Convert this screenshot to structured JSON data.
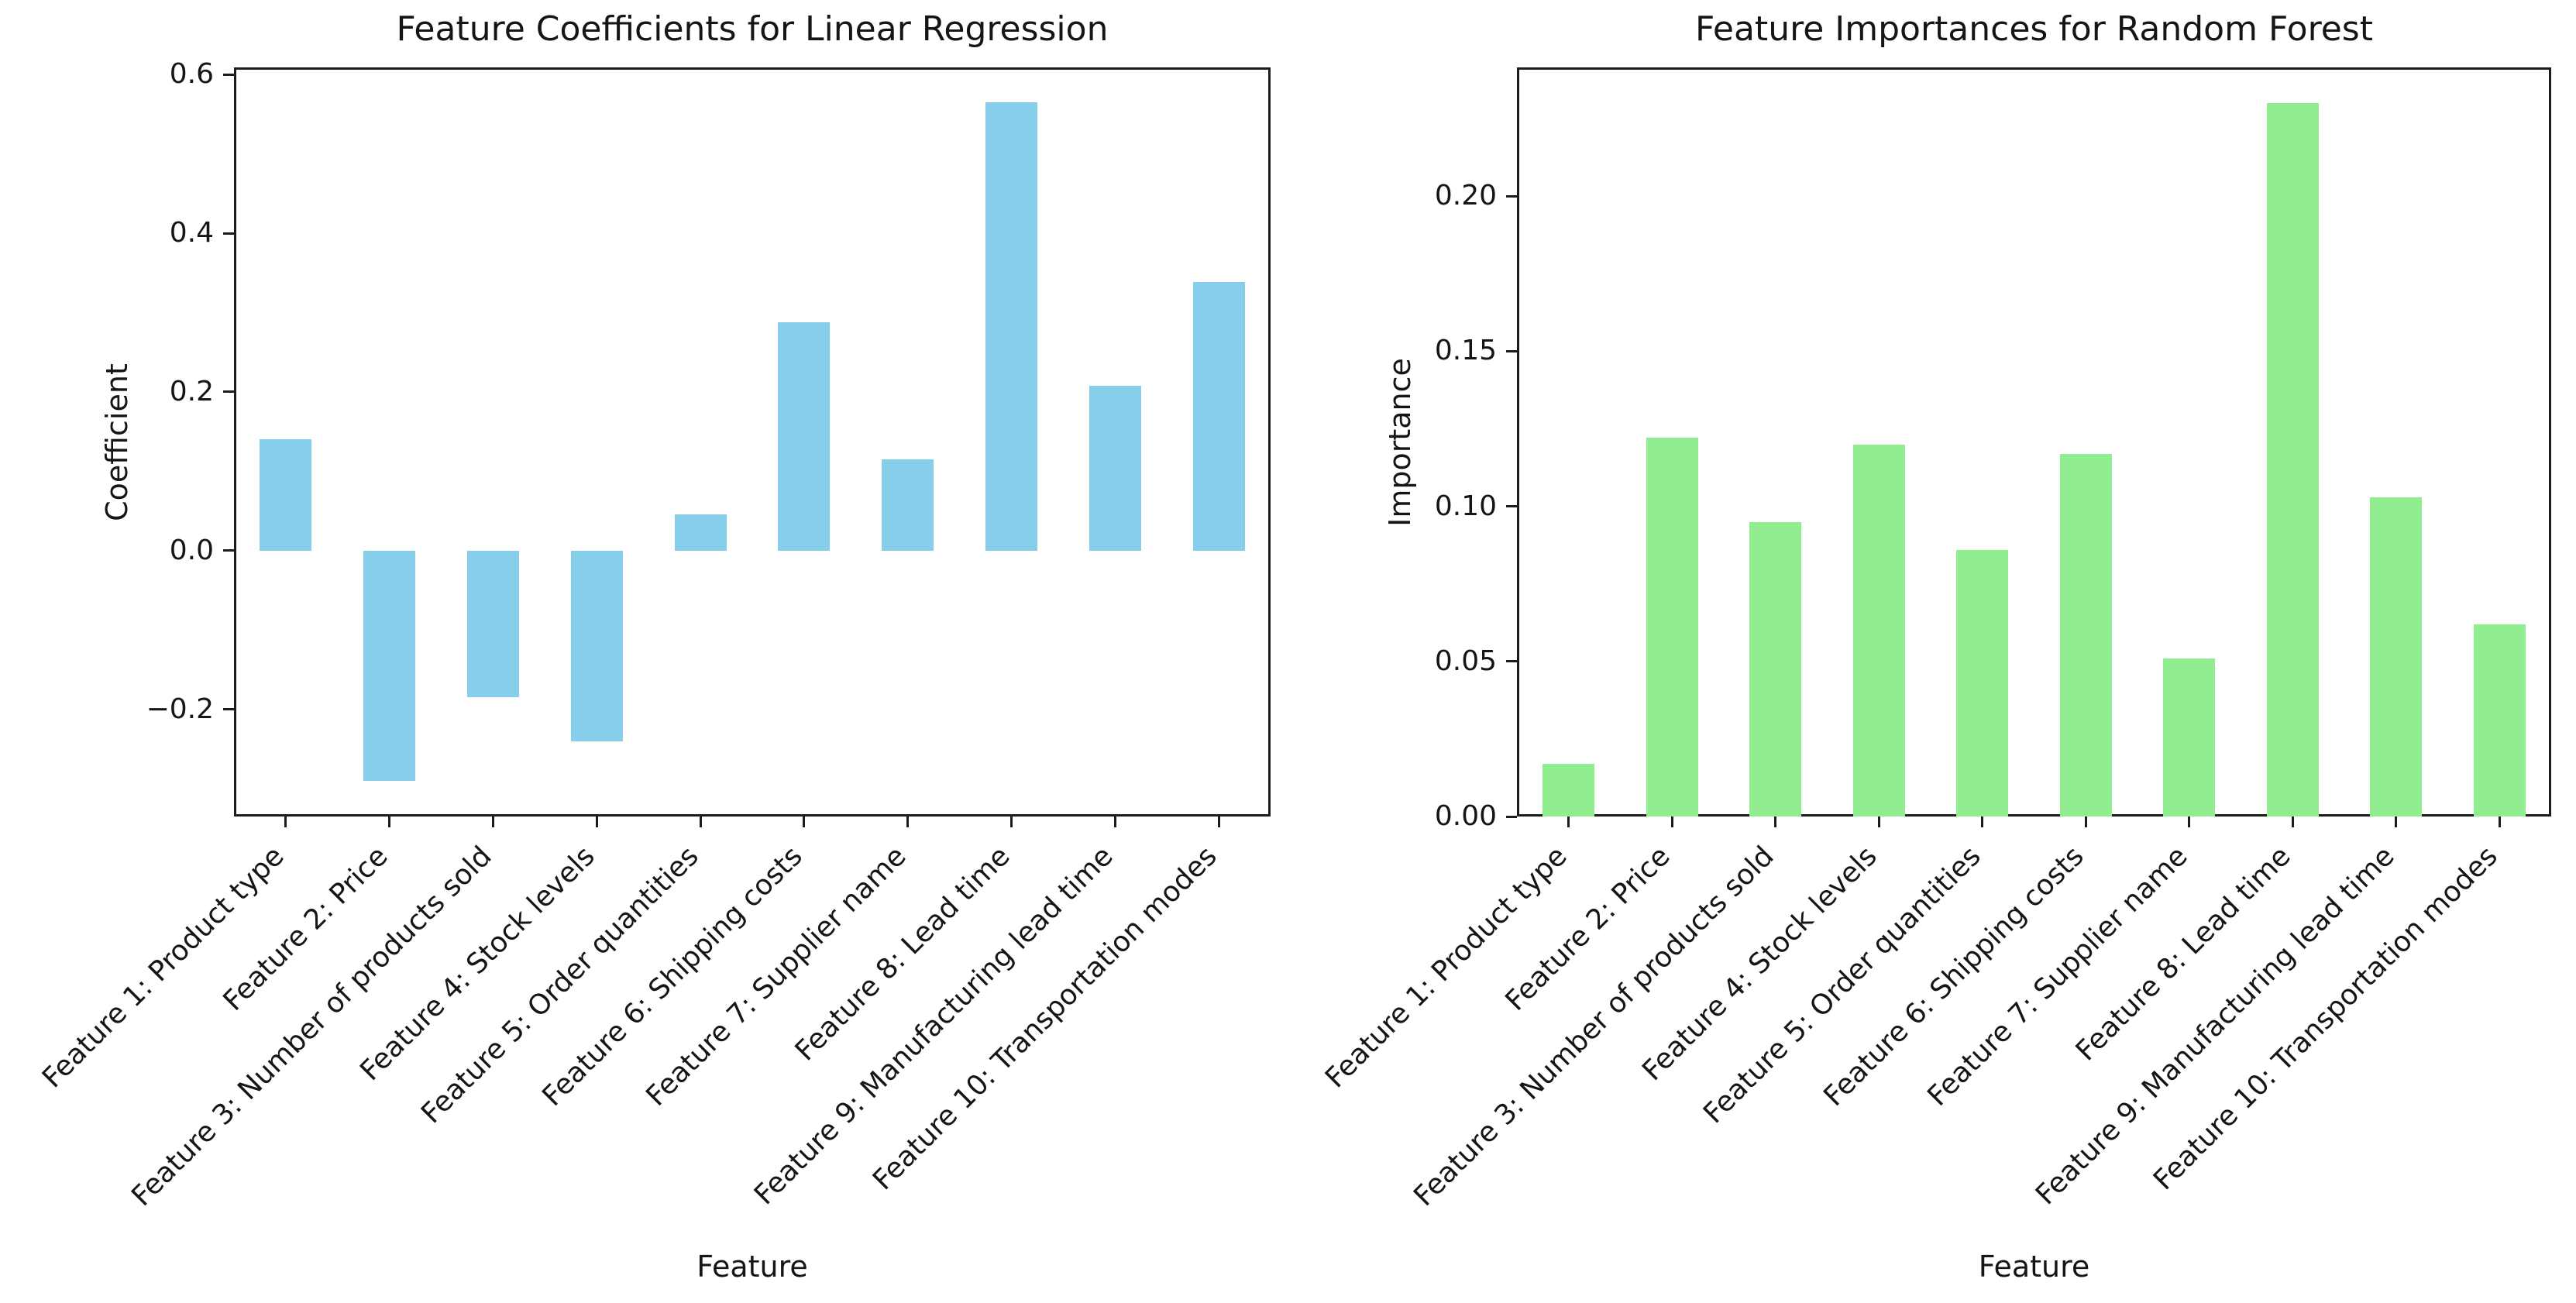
{
  "figure": {
    "background": "#ffffff",
    "axes_color": "#1c1c1c",
    "text_color": "#151515"
  },
  "chart_data": [
    {
      "type": "bar",
      "title": "Feature Coefficients for Linear Regression",
      "xlabel": "Feature",
      "ylabel": "Coefficient",
      "bar_color": "#87CEEB",
      "categories": [
        "Feature 1: Product type",
        "Feature 2: Price",
        "Feature 3: Number of products sold",
        "Feature 4: Stock levels",
        "Feature 5: Order quantities",
        "Feature 6: Shipping costs",
        "Feature 7: Supplier name",
        "Feature 8: Lead time",
        "Feature 9: Manufacturing lead time",
        "Feature 10: Transportation modes"
      ],
      "values": [
        0.14,
        -0.29,
        -0.185,
        -0.24,
        0.046,
        0.288,
        0.115,
        0.565,
        0.208,
        0.339
      ],
      "ylim": [
        -0.335,
        0.609
      ],
      "yticks": [
        {
          "v": 0.6,
          "label": "0.6"
        },
        {
          "v": 0.4,
          "label": "0.4"
        },
        {
          "v": 0.2,
          "label": "0.2"
        },
        {
          "v": 0.0,
          "label": "0.0"
        },
        {
          "v": -0.2,
          "label": "−0.2"
        }
      ],
      "grid": false,
      "legend": null
    },
    {
      "type": "bar",
      "title": "Feature Importances for Random Forest",
      "xlabel": "Feature",
      "ylabel": "Importance",
      "bar_color": "#90EE90",
      "categories": [
        "Feature 1: Product type",
        "Feature 2: Price",
        "Feature 3: Number of products sold",
        "Feature 4: Stock levels",
        "Feature 5: Order quantities",
        "Feature 6: Shipping costs",
        "Feature 7: Supplier name",
        "Feature 8: Lead time",
        "Feature 9: Manufacturing lead time",
        "Feature 10: Transportation modes"
      ],
      "values": [
        0.017,
        0.122,
        0.095,
        0.12,
        0.086,
        0.117,
        0.051,
        0.23,
        0.103,
        0.062
      ],
      "ylim": [
        0,
        0.2415
      ],
      "yticks": [
        {
          "v": 0.0,
          "label": "0.00"
        },
        {
          "v": 0.05,
          "label": "0.05"
        },
        {
          "v": 0.1,
          "label": "0.10"
        },
        {
          "v": 0.15,
          "label": "0.15"
        },
        {
          "v": 0.2,
          "label": "0.20"
        }
      ],
      "grid": false,
      "legend": null
    }
  ]
}
